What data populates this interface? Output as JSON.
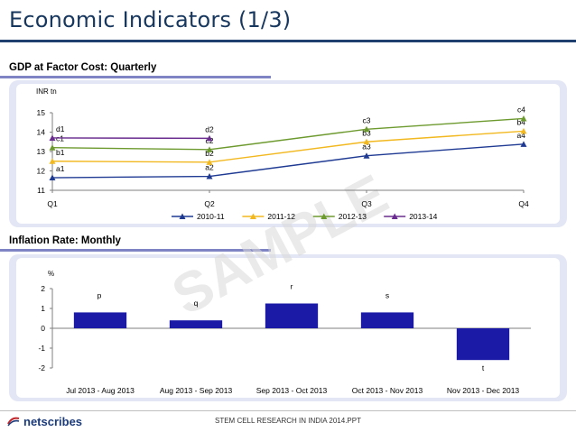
{
  "page": {
    "title": "Economic Indicators (1/3)",
    "watermark": "SAMPLE",
    "footer": "STEM CELL RESEARCH IN INDIA 2014.PPT",
    "logo": "netscribes"
  },
  "chart_data": [
    {
      "type": "line",
      "section_label": "GDP at Factor Cost: Quarterly",
      "ylabel": "INR tn",
      "xlabel": "",
      "categories": [
        "Q1",
        "Q2",
        "Q3",
        "Q4"
      ],
      "ylim": [
        11,
        15
      ],
      "yticks": [
        11,
        12,
        13,
        14,
        15
      ],
      "legend": "bottom",
      "series": [
        {
          "name": "2010-11",
          "color": "#1f3a93",
          "values": [
            11.65,
            11.72,
            12.78,
            13.38
          ],
          "labels": [
            "a1",
            "a2",
            "a3",
            "a4"
          ]
        },
        {
          "name": "2011-12",
          "color": "#f2b81f",
          "values": [
            12.5,
            12.45,
            13.5,
            14.05
          ],
          "labels": [
            "b1",
            "b2",
            "b3",
            "b4"
          ]
        },
        {
          "name": "2012-13",
          "color": "#6d9a2e",
          "values": [
            13.2,
            13.1,
            14.15,
            14.7
          ],
          "labels": [
            "c1",
            "c2",
            "c3",
            "c4"
          ]
        },
        {
          "name": "2013-14",
          "color": "#6a2d8f",
          "values": [
            13.7,
            13.68,
            null,
            null
          ],
          "labels": [
            "d1",
            "d2",
            "",
            ""
          ]
        }
      ]
    },
    {
      "type": "bar",
      "section_label": "Inflation Rate: Monthly",
      "ylabel": "%",
      "xlabel": "",
      "categories": [
        "Jul 2013 - Aug 2013",
        "Aug 2013 - Sep 2013",
        "Sep 2013 - Oct 2013",
        "Oct 2013 - Nov 2013",
        "Nov 2013 -  Dec 2013"
      ],
      "values": [
        0.8,
        0.4,
        1.25,
        0.8,
        -1.6
      ],
      "labels": [
        "p",
        "q",
        "r",
        "s",
        "t"
      ],
      "ylim": [
        -2,
        2
      ],
      "yticks": [
        -2,
        -1,
        0,
        1,
        2
      ],
      "color": "#1a1aa6"
    }
  ]
}
